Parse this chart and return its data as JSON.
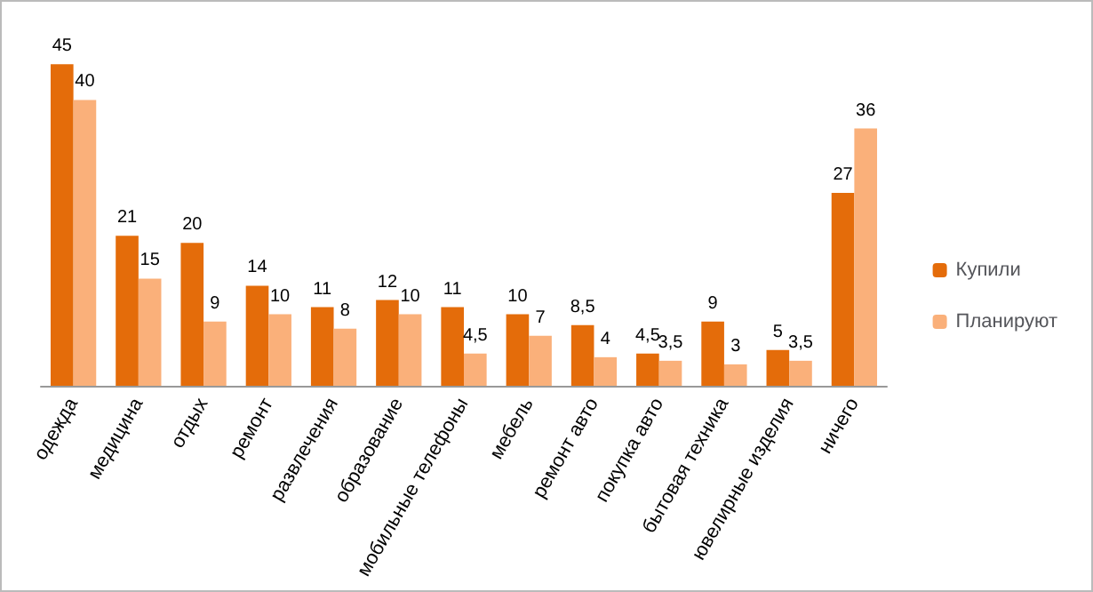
{
  "chart_data": {
    "type": "bar",
    "categories": [
      "одежда",
      "медицина",
      "отдых",
      "ремонт",
      "развлечения",
      "образование",
      "мобильные телефоны",
      "мебель",
      "ремонт авто",
      "покупка авто",
      "бытовая техника",
      "ювелирные изделия",
      "ничего"
    ],
    "series": [
      {
        "name": "Купили",
        "color": "#e46c0a",
        "values": [
          45,
          21,
          20,
          14,
          11,
          12,
          11,
          10,
          8.5,
          4.5,
          9,
          5,
          27
        ],
        "value_labels": [
          "45",
          "21",
          "20",
          "14",
          "11",
          "12",
          "11",
          "10",
          "8,5",
          "4,5",
          "9",
          "5",
          "27"
        ]
      },
      {
        "name": "Планируют",
        "color": "#fab07a",
        "values": [
          40,
          15,
          9,
          10,
          8,
          10,
          4.5,
          7,
          4,
          3.5,
          3,
          3.5,
          36
        ],
        "value_labels": [
          "40",
          "15",
          "9",
          "10",
          "8",
          "10",
          "4,5",
          "7",
          "4",
          "3,5",
          "3",
          "3,5",
          "36"
        ]
      }
    ],
    "legend": "right"
  }
}
